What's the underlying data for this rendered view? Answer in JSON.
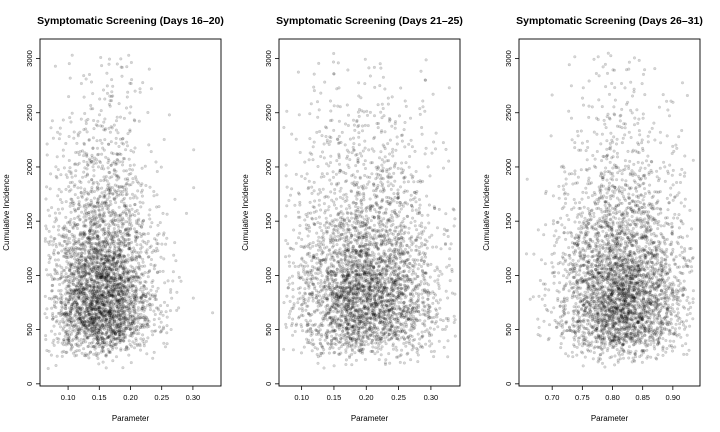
{
  "chart_data": [
    {
      "type": "scatter",
      "title": "Symptomatic Screening (Days 16–20)",
      "xlabel": "Parameter",
      "ylabel": "Cumulative Incidence",
      "xlim": [
        0.055,
        0.345
      ],
      "ylim": [
        -20,
        3180
      ],
      "xticks": [
        0.1,
        0.15,
        0.2,
        0.25,
        0.3
      ],
      "xtick_labels": [
        "0.10",
        "0.15",
        "0.20",
        "0.25",
        "0.30"
      ],
      "yticks": [
        0,
        500,
        1000,
        1500,
        2000,
        2500,
        3000
      ],
      "ytick_labels": [
        "0",
        "500",
        "1000",
        "1500",
        "2000",
        "2500",
        "3000"
      ],
      "grid": false,
      "point_color": "#000000",
      "approx_point_count": 3600,
      "sample_points": [
        [
          0.08,
          680
        ],
        [
          0.11,
          1250
        ],
        [
          0.13,
          760
        ],
        [
          0.145,
          1020
        ],
        [
          0.16,
          600
        ],
        [
          0.17,
          1480
        ],
        [
          0.185,
          880
        ],
        [
          0.2,
          1800
        ],
        [
          0.22,
          720
        ],
        [
          0.25,
          540
        ],
        [
          0.31,
          1070
        ],
        [
          0.33,
          420
        ]
      ]
    },
    {
      "type": "scatter",
      "title": "Symptomatic Screening (Days 21–25)",
      "xlabel": "Parameter",
      "ylabel": "Cumulative Incidence",
      "xlim": [
        0.065,
        0.345
      ],
      "ylim": [
        -20,
        3180
      ],
      "xticks": [
        0.1,
        0.15,
        0.2,
        0.25,
        0.3
      ],
      "xtick_labels": [
        "0.10",
        "0.15",
        "0.20",
        "0.25",
        "0.30"
      ],
      "yticks": [
        0,
        500,
        1000,
        1500,
        2000,
        2500,
        3000
      ],
      "ytick_labels": [
        "0",
        "500",
        "1000",
        "1500",
        "2000",
        "2500",
        "3000"
      ],
      "grid": false,
      "point_color": "#000000",
      "approx_point_count": 3600,
      "sample_points": [
        [
          0.09,
          820
        ],
        [
          0.12,
          1310
        ],
        [
          0.15,
          640
        ],
        [
          0.18,
          1050
        ],
        [
          0.2,
          890
        ],
        [
          0.22,
          1520
        ],
        [
          0.24,
          700
        ],
        [
          0.26,
          1150
        ],
        [
          0.28,
          980
        ],
        [
          0.3,
          560
        ],
        [
          0.32,
          1330
        ]
      ]
    },
    {
      "type": "scatter",
      "title": "Symptomatic Screening (Days 26–31)",
      "xlabel": "Parameter",
      "ylabel": "Cumulative Incidence",
      "xlim": [
        0.645,
        0.945
      ],
      "ylim": [
        -20,
        3180
      ],
      "xticks": [
        0.7,
        0.75,
        0.8,
        0.85,
        0.9
      ],
      "xtick_labels": [
        "0.70",
        "0.75",
        "0.80",
        "0.85",
        "0.90"
      ],
      "yticks": [
        0,
        500,
        1000,
        1500,
        2000,
        2500,
        3000
      ],
      "ytick_labels": [
        "0",
        "500",
        "1000",
        "1500",
        "2000",
        "2500",
        "3000"
      ],
      "grid": false,
      "point_color": "#000000",
      "approx_point_count": 3600,
      "sample_points": [
        [
          0.68,
          1120
        ],
        [
          0.72,
          740
        ],
        [
          0.76,
          1480
        ],
        [
          0.79,
          900
        ],
        [
          0.81,
          620
        ],
        [
          0.83,
          1060
        ],
        [
          0.85,
          810
        ],
        [
          0.87,
          1350
        ],
        [
          0.89,
          690
        ],
        [
          0.92,
          1010
        ]
      ]
    }
  ]
}
